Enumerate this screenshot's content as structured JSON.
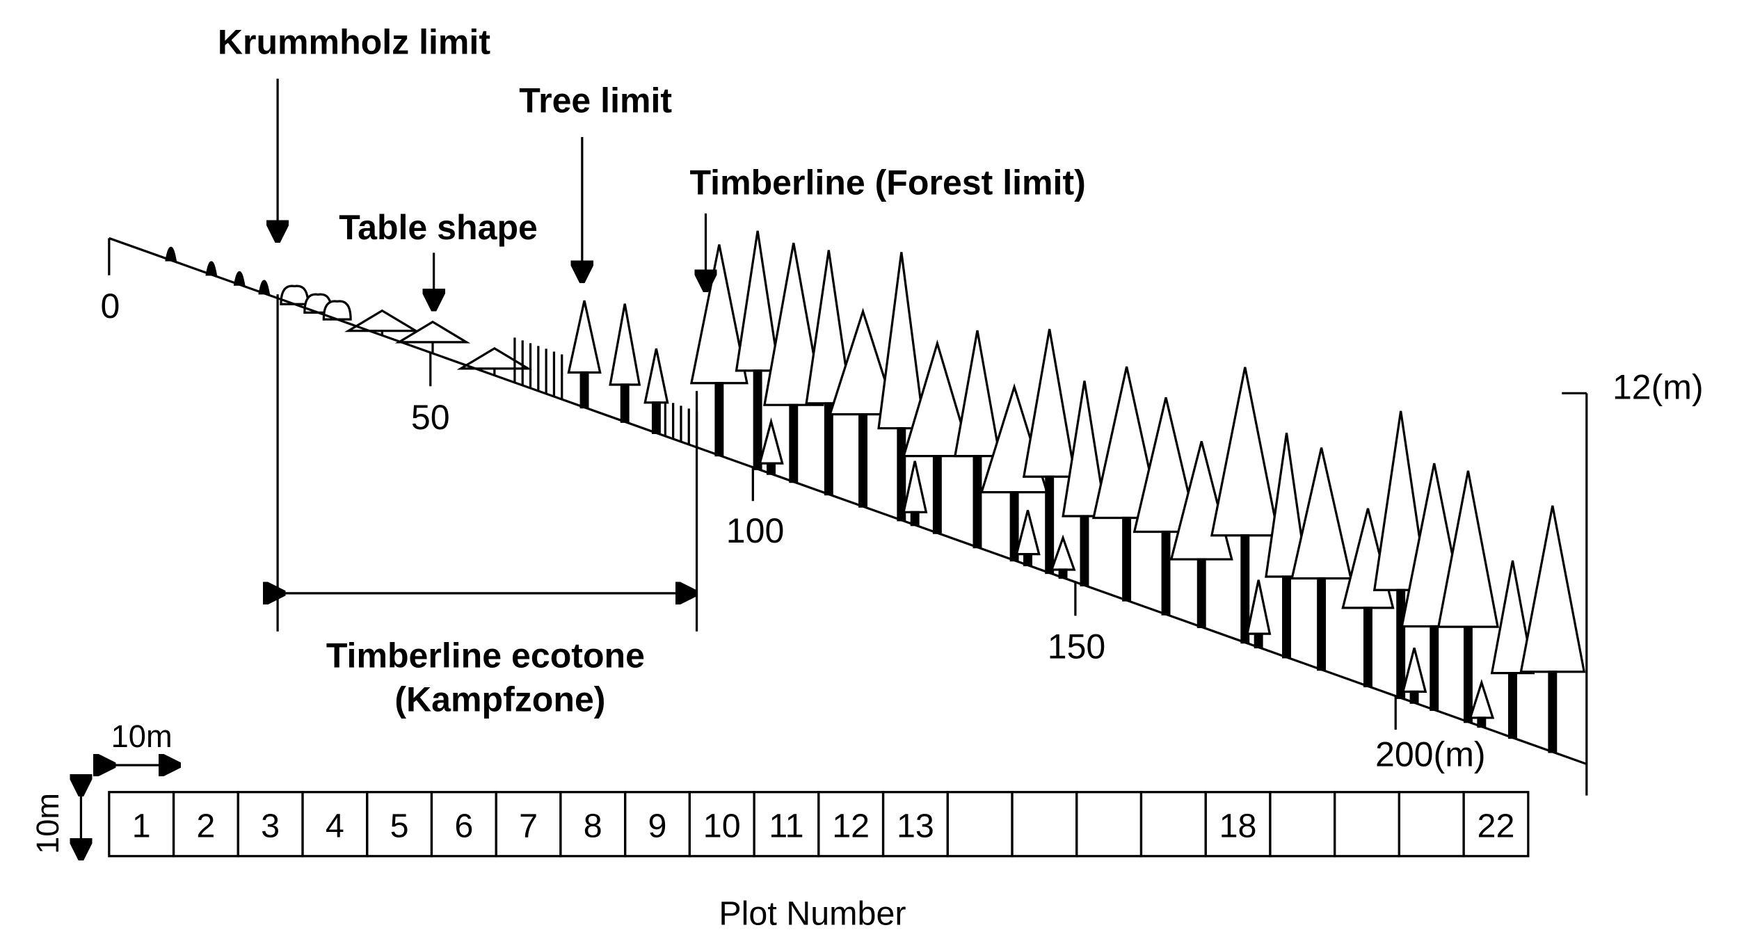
{
  "annotations": {
    "krummholz": "Krummholz limit",
    "tree_limit": "Tree limit",
    "timberline": "Timberline (Forest limit)",
    "table_shape": "Table shape"
  },
  "distance_labels": [
    "0",
    "50",
    "100",
    "150",
    "200(m)"
  ],
  "height_label": "12(m)",
  "ecotone": {
    "line1": "Timberline ecotone",
    "line2": "(Kampfzone)"
  },
  "scale": {
    "horizontal": "10m",
    "vertical": "10m"
  },
  "plots": [
    1,
    2,
    3,
    4,
    5,
    6,
    7,
    8,
    9,
    10,
    11,
    12,
    13,
    null,
    null,
    null,
    null,
    18,
    null,
    null,
    null,
    22
  ],
  "x_label": "Plot Number"
}
